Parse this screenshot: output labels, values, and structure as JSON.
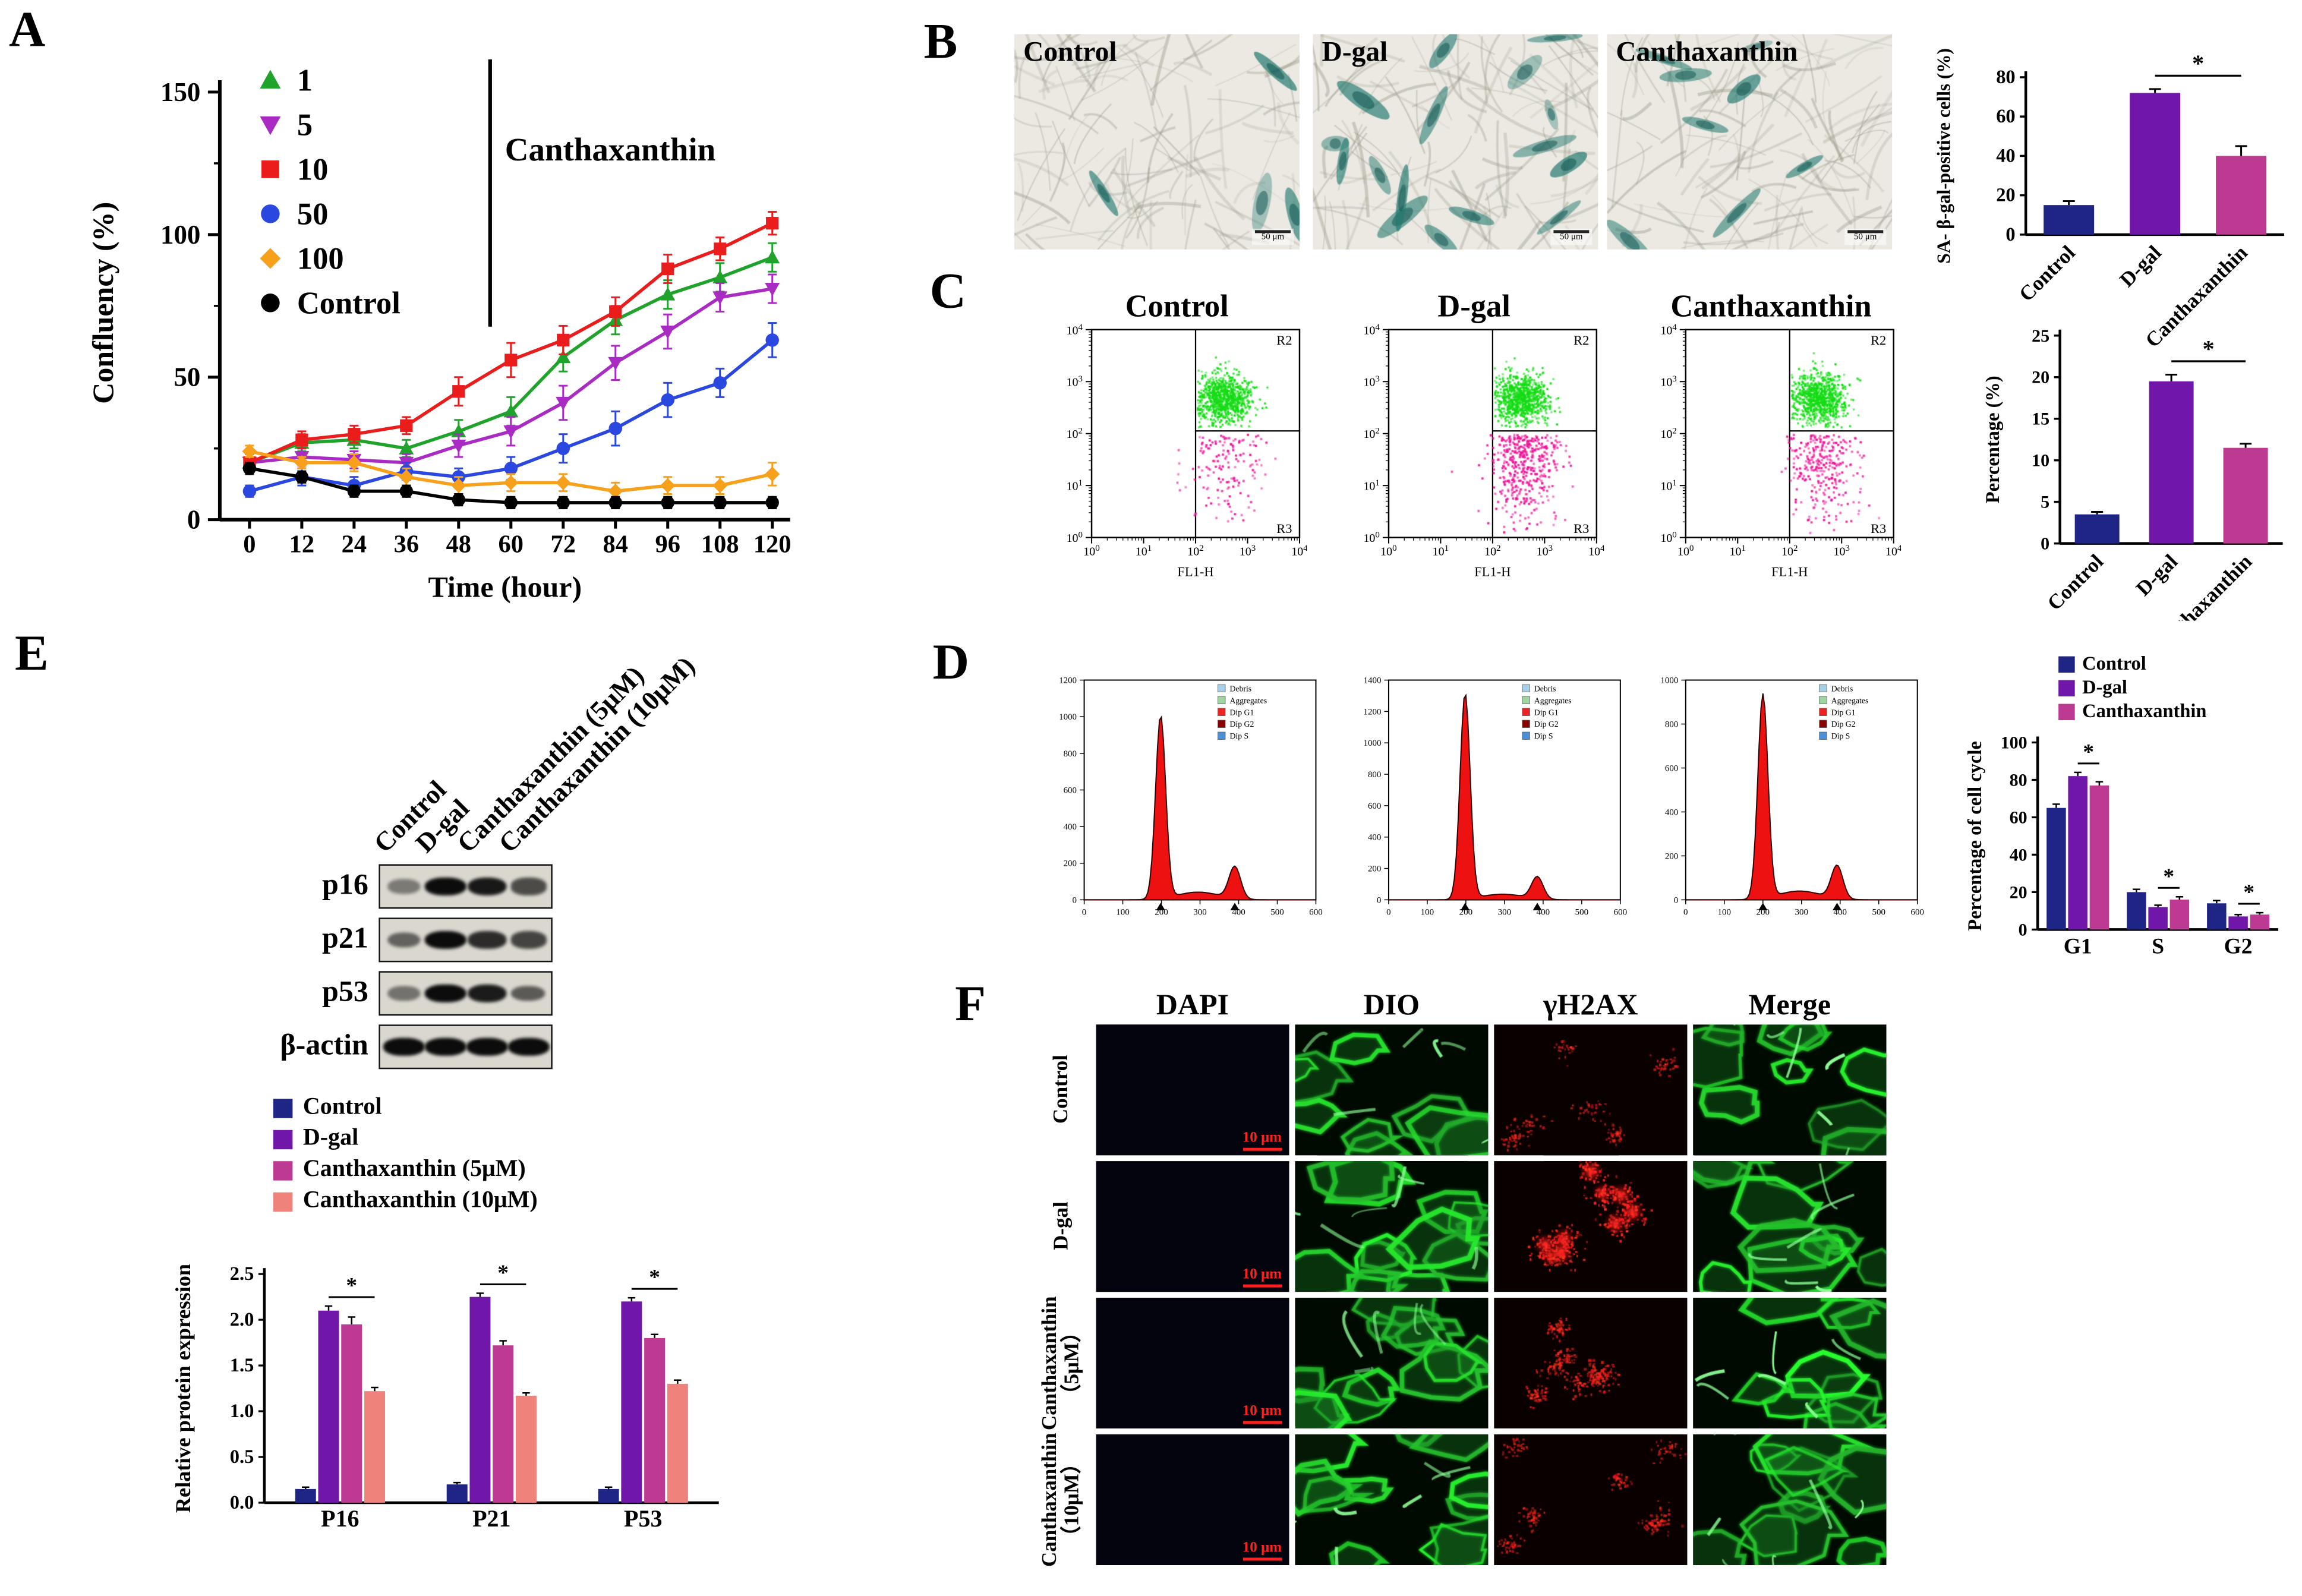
{
  "panelA": {
    "label": "A"
  },
  "panelB": {
    "label": "B",
    "images": [
      {
        "title": "Control"
      },
      {
        "title": "D-gal"
      },
      {
        "title": "Canthaxanthin"
      }
    ],
    "scale_bar": "50 μm"
  },
  "panelC": {
    "label": "C",
    "titles": [
      "Control",
      "D-gal",
      "Canthaxanthin"
    ]
  },
  "panelD": {
    "label": "D"
  },
  "panelE": {
    "label": "E",
    "col_labels": [
      "Control",
      "D-gal",
      "Canthaxanthin (5μM)",
      "Canthaxanthin (10μM)"
    ],
    "rows": [
      {
        "name": "p16",
        "intensities": [
          0.3,
          1,
          0.92,
          0.6
        ]
      },
      {
        "name": "p21",
        "intensities": [
          0.45,
          1,
          0.8,
          0.65
        ]
      },
      {
        "name": "p53",
        "intensities": [
          0.35,
          1,
          0.9,
          0.5
        ]
      },
      {
        "name": "β-actin",
        "intensities": [
          1,
          1,
          1,
          1
        ]
      }
    ]
  },
  "panelF": {
    "label": "F",
    "col_headers": [
      "DAPI",
      "DIO",
      "γH2AX",
      "Merge"
    ],
    "row_labels": [
      "Control",
      "D-gal",
      "Canthaxanthin\n（5μM）",
      "Canthaxanthin\n（10μM）"
    ],
    "scale_bar": "10 μm"
  },
  "chart_data": [
    {
      "id": "confluency_curves",
      "type": "line",
      "xlabel": "Time (hour)",
      "ylabel": "Confluency (%)",
      "legend_title": "Canthaxanthin",
      "x": [
        0,
        12,
        24,
        36,
        48,
        60,
        72,
        84,
        96,
        108,
        120
      ],
      "ylim": [
        0,
        150
      ],
      "yticks": [
        0,
        50,
        100,
        150
      ],
      "series": [
        {
          "name": "1",
          "marker": "triangle-up",
          "color": "#1fa32b",
          "values": [
            20,
            27,
            28,
            25,
            31,
            38,
            57,
            70,
            79,
            85,
            92
          ],
          "errors": [
            3,
            3,
            3,
            3,
            4,
            5,
            5,
            5,
            5,
            5,
            5
          ]
        },
        {
          "name": "5",
          "marker": "triangle-down",
          "color": "#a92bc4",
          "values": [
            20,
            22,
            21,
            20,
            26,
            31,
            41,
            55,
            66,
            78,
            81
          ],
          "errors": [
            3,
            3,
            3,
            3,
            4,
            5,
            6,
            6,
            6,
            5,
            5
          ]
        },
        {
          "name": "10",
          "marker": "square",
          "color": "#ea1c1c",
          "values": [
            20,
            28,
            30,
            33,
            45,
            56,
            63,
            73,
            88,
            95,
            104
          ],
          "errors": [
            3,
            3,
            3,
            3,
            5,
            6,
            5,
            5,
            5,
            4,
            4
          ]
        },
        {
          "name": "50",
          "marker": "circle",
          "color": "#2a47e0",
          "values": [
            10,
            15,
            12,
            17,
            15,
            18,
            25,
            32,
            42,
            48,
            63
          ],
          "errors": [
            2,
            3,
            3,
            3,
            3,
            4,
            5,
            6,
            6,
            5,
            6
          ]
        },
        {
          "name": "100",
          "marker": "diamond",
          "color": "#f6a01c",
          "values": [
            24,
            20,
            20,
            15,
            12,
            13,
            13,
            10,
            12,
            12,
            16
          ],
          "errors": [
            2,
            2,
            3,
            3,
            3,
            3,
            3,
            3,
            3,
            3,
            4
          ]
        },
        {
          "name": "Control",
          "marker": "circle",
          "color": "#000000",
          "values": [
            18,
            15,
            10,
            10,
            7,
            6,
            6,
            6,
            6,
            6,
            6
          ],
          "errors": [
            2,
            2,
            2,
            2,
            2,
            2,
            2,
            2,
            2,
            2,
            2
          ]
        }
      ]
    },
    {
      "id": "sa_bgal_positive",
      "type": "bar",
      "ylabel": "SA- β-gal-positive cells (%)",
      "categories": [
        "Control",
        "D-gal",
        "Canthaxanthin"
      ],
      "values": [
        15,
        72,
        40
      ],
      "errors": [
        2,
        2,
        5
      ],
      "colors": [
        "#1f2585",
        "#7016a8",
        "#bc3a92"
      ],
      "ylim": [
        0,
        80
      ],
      "yticks": [
        0,
        20,
        40,
        60,
        80
      ],
      "sig": {
        "label": "*",
        "between": [
          1,
          2
        ]
      }
    },
    {
      "id": "apoptosis_percentage",
      "type": "bar",
      "ylabel": "Percentage (%)",
      "categories": [
        "Control",
        "D-gal",
        "Canthaxanthin"
      ],
      "values": [
        3.5,
        19.5,
        11.5
      ],
      "errors": [
        0.3,
        0.8,
        0.5
      ],
      "colors": [
        "#1f2585",
        "#7016a8",
        "#bc3a92"
      ],
      "ylim": [
        0,
        25
      ],
      "yticks": [
        0,
        5,
        10,
        15,
        20,
        25
      ],
      "sig": {
        "label": "*",
        "between": [
          1,
          2
        ]
      }
    },
    {
      "id": "flow_cytometry",
      "type": "scatter",
      "xlabel": "FL1-H",
      "plots": [
        {
          "title": "Control"
        },
        {
          "title": "D-gal"
        },
        {
          "title": "Canthaxanthin"
        }
      ],
      "x_decades": [
        0,
        1,
        2,
        3,
        4
      ],
      "y_decades": [
        0,
        1,
        2,
        3,
        4
      ],
      "regions": [
        "R2",
        "R3"
      ],
      "green_cluster": {
        "x_log": 2.55,
        "y_log": 2.7
      },
      "pink_counts": [
        150,
        450,
        300
      ]
    },
    {
      "id": "cell_cycle_histograms",
      "type": "area",
      "legend": [
        "Debris",
        "Aggregates",
        "Dip G1",
        "Dip G2",
        "Dip S"
      ],
      "legend_colors": [
        "#a8cfe8",
        "#9fd6a0",
        "#ee2222",
        "#8b0000",
        "#4a90d9"
      ],
      "xmax": 600,
      "xtick_step": 100,
      "ytick_step": 200,
      "plots": [
        {
          "ymax": 1200,
          "g1_peak_x": 198,
          "g1_height": 1000,
          "g2_peak_x": 390,
          "g2_height": 175,
          "s_height": 42
        },
        {
          "ymax": 1400,
          "g1_peak_x": 198,
          "g1_height": 1310,
          "g2_peak_x": 385,
          "g2_height": 140,
          "s_height": 36
        },
        {
          "ymax": 1000,
          "g1_peak_x": 200,
          "g1_height": 930,
          "g2_peak_x": 392,
          "g2_height": 150,
          "s_height": 40
        }
      ]
    },
    {
      "id": "cell_cycle_distribution",
      "type": "bar",
      "ylabel": "Percentage of cell cycle",
      "categories": [
        "G1",
        "S",
        "G2"
      ],
      "ylim": [
        0,
        100
      ],
      "yticks": [
        0,
        20,
        40,
        60,
        80,
        100
      ],
      "sig_label": "*",
      "series": [
        {
          "name": "Control",
          "color": "#1f2585",
          "values": [
            65,
            20,
            14
          ],
          "errors": [
            2,
            1.5,
            1.5
          ]
        },
        {
          "name": "D-gal",
          "color": "#7016a8",
          "values": [
            82,
            12,
            7
          ],
          "errors": [
            2,
            1,
            1
          ]
        },
        {
          "name": "Canthaxanthin",
          "color": "#bc3a92",
          "values": [
            77,
            16,
            8
          ],
          "errors": [
            2,
            1.5,
            1
          ]
        }
      ]
    },
    {
      "id": "relative_protein_expression",
      "type": "bar",
      "ylabel": "Relative protein expression",
      "categories": [
        "P16",
        "P21",
        "P53"
      ],
      "ylim": [
        0,
        2.5
      ],
      "yticks": [
        0,
        0.5,
        1,
        1.5,
        2,
        2.5
      ],
      "sig_label": "*",
      "series": [
        {
          "name": "Control",
          "color": "#1f2585",
          "values": [
            0.15,
            0.2,
            0.15
          ],
          "errors": [
            0.02,
            0.02,
            0.02
          ]
        },
        {
          "name": "D-gal",
          "color": "#7016a8",
          "values": [
            2.1,
            2.25,
            2.2
          ],
          "errors": [
            0.05,
            0.04,
            0.04
          ]
        },
        {
          "name": "Canthaxanthin (5μM)",
          "color": "#bc3a92",
          "values": [
            1.95,
            1.72,
            1.8
          ],
          "errors": [
            0.08,
            0.05,
            0.04
          ]
        },
        {
          "name": "Canthaxanthin (10μM)",
          "color": "#ef837b",
          "values": [
            1.22,
            1.17,
            1.3
          ],
          "errors": [
            0.04,
            0.03,
            0.04
          ]
        }
      ]
    }
  ]
}
